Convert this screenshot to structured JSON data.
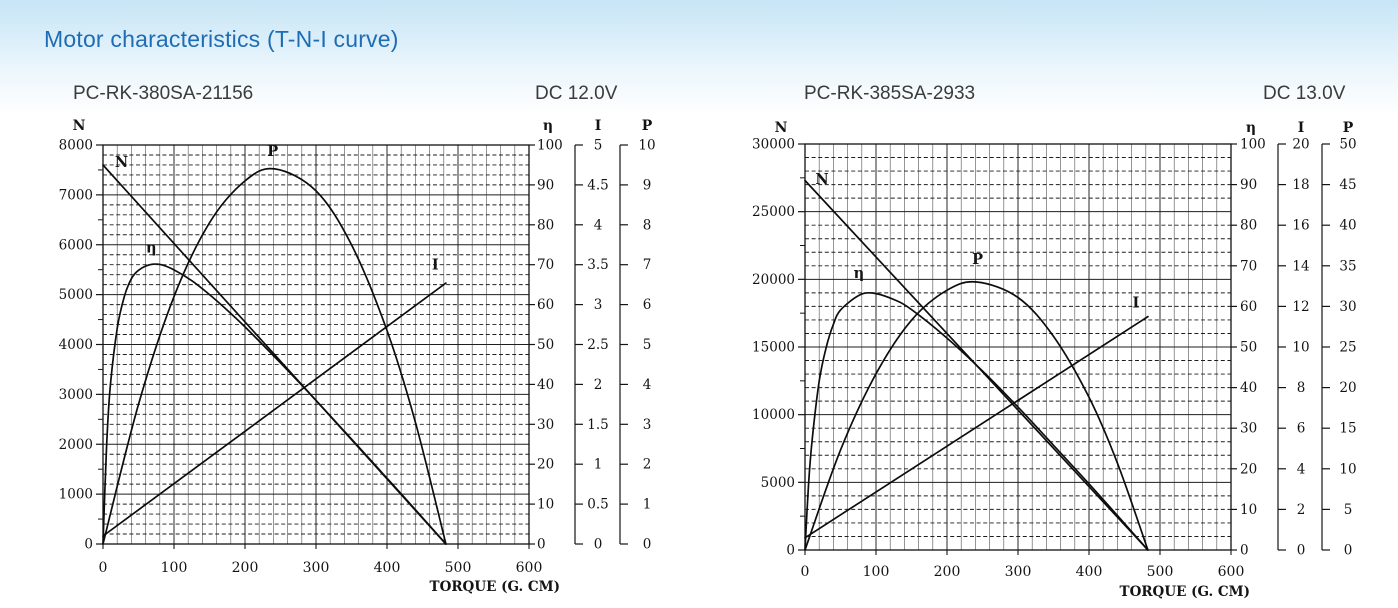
{
  "page": {
    "heading": "Motor characteristics (T-N-I curve)",
    "heading_color": "#1d6db5",
    "ink_color": "#141414",
    "title_color": "#3b3b3b"
  },
  "chart_data": [
    {
      "type": "line",
      "model": "PC-RK-380SA-21156",
      "voltage": "DC 12.0V",
      "x_axis": {
        "label": "TORQUE (G. CM)",
        "min": 0,
        "max": 600,
        "major_step": 100,
        "minor_step": 20
      },
      "axes": {
        "N": {
          "title": "N",
          "min": 0,
          "max": 8000,
          "label_step": 1000,
          "minor_step": 200
        },
        "eta": {
          "title": "η",
          "min": 0,
          "max": 100,
          "label_step": 10
        },
        "I": {
          "title": "I",
          "min": 0,
          "max": 5,
          "label_step": 0.5
        },
        "P": {
          "title": "P",
          "min": 0,
          "max": 10,
          "label_step": 1
        }
      },
      "grid": {
        "h_minor_dashed": true,
        "v_minor_solid": true
      },
      "stall_torque": 483,
      "no_load_speed": 7600,
      "series": [
        {
          "name": "N",
          "axis": "N",
          "label_at": [
            26,
            7560
          ],
          "points": [
            [
              0,
              7600
            ],
            [
              483,
              0
            ]
          ]
        },
        {
          "name": "P",
          "axis": "P",
          "label_at": [
            239,
            9.72
          ],
          "points": [
            [
              0,
              0
            ],
            [
              50,
              3.5
            ],
            [
              100,
              6.2
            ],
            [
              150,
              8.05
            ],
            [
              200,
              9.1
            ],
            [
              242,
              9.4
            ],
            [
              300,
              8.85
            ],
            [
              350,
              7.5
            ],
            [
              400,
              5.35
            ],
            [
              440,
              3.05
            ],
            [
              483,
              0
            ]
          ]
        },
        {
          "name": "η",
          "axis": "eta",
          "label_at": [
            68,
            73
          ],
          "points": [
            [
              0,
              0
            ],
            [
              5,
              24
            ],
            [
              10,
              39
            ],
            [
              20,
              54
            ],
            [
              30,
              62
            ],
            [
              40,
              66.5
            ],
            [
              50,
              68.6
            ],
            [
              66,
              70
            ],
            [
              82,
              70
            ],
            [
              100,
              68.7
            ],
            [
              125,
              66
            ],
            [
              150,
              62.5
            ],
            [
              175,
              58.6
            ],
            [
              200,
              54.4
            ],
            [
              250,
              45.4
            ],
            [
              300,
              36
            ],
            [
              350,
              26.3
            ],
            [
              400,
              16.5
            ],
            [
              440,
              8.6
            ],
            [
              483,
              0
            ]
          ]
        },
        {
          "name": "I",
          "axis": "I",
          "label_at": [
            468,
            3.44
          ],
          "points": [
            [
              0,
              0.1
            ],
            [
              483,
              3.27
            ]
          ]
        }
      ]
    },
    {
      "type": "line",
      "model": "PC-RK-385SA-2933",
      "voltage": "DC 13.0V",
      "x_axis": {
        "label": "TORQUE (G. CM)",
        "min": 0,
        "max": 600,
        "major_step": 100,
        "minor_step": 20
      },
      "axes": {
        "N": {
          "title": "N",
          "min": 0,
          "max": 30000,
          "label_step": 5000,
          "minor_step": 1000
        },
        "eta": {
          "title": "η",
          "min": 0,
          "max": 100,
          "label_step": 10
        },
        "I": {
          "title": "I",
          "min": 0,
          "max": 20,
          "label_step": 2
        },
        "P": {
          "title": "P",
          "min": 0,
          "max": 50,
          "label_step": 5
        }
      },
      "grid": {
        "h_minor_dashed": true,
        "v_minor_solid": true
      },
      "stall_torque": 483,
      "no_load_speed": 27300,
      "series": [
        {
          "name": "N",
          "axis": "N",
          "label_at": [
            24,
            27050
          ],
          "points": [
            [
              0,
              27300
            ],
            [
              483,
              0
            ]
          ]
        },
        {
          "name": "P",
          "axis": "P",
          "label_at": [
            243,
            35.2
          ],
          "points": [
            [
              0,
              0
            ],
            [
              50,
              12.3
            ],
            [
              100,
              21.7
            ],
            [
              150,
              28.3
            ],
            [
              200,
              32
            ],
            [
              242,
              33
            ],
            [
              300,
              31.1
            ],
            [
              350,
              26.3
            ],
            [
              400,
              18.8
            ],
            [
              440,
              10.7
            ],
            [
              483,
              0
            ]
          ]
        },
        {
          "name": "η",
          "axis": "eta",
          "label_at": [
            76,
            67
          ],
          "points": [
            [
              0,
              0
            ],
            [
              5,
              16
            ],
            [
              10,
              27
            ],
            [
              20,
              41.6
            ],
            [
              30,
              50
            ],
            [
              40,
              55.6
            ],
            [
              50,
              59.1
            ],
            [
              75,
              62.6
            ],
            [
              95,
              63.3
            ],
            [
              125,
              61.7
            ],
            [
              150,
              59.2
            ],
            [
              200,
              52.2
            ],
            [
              250,
              44.1
            ],
            [
              300,
              35.2
            ],
            [
              350,
              25.8
            ],
            [
              400,
              16.3
            ],
            [
              440,
              8.5
            ],
            [
              483,
              0
            ]
          ]
        },
        {
          "name": "I",
          "axis": "I",
          "label_at": [
            466,
            11.95
          ],
          "points": [
            [
              0,
              0.6
            ],
            [
              483,
              11.5
            ]
          ]
        }
      ]
    }
  ]
}
